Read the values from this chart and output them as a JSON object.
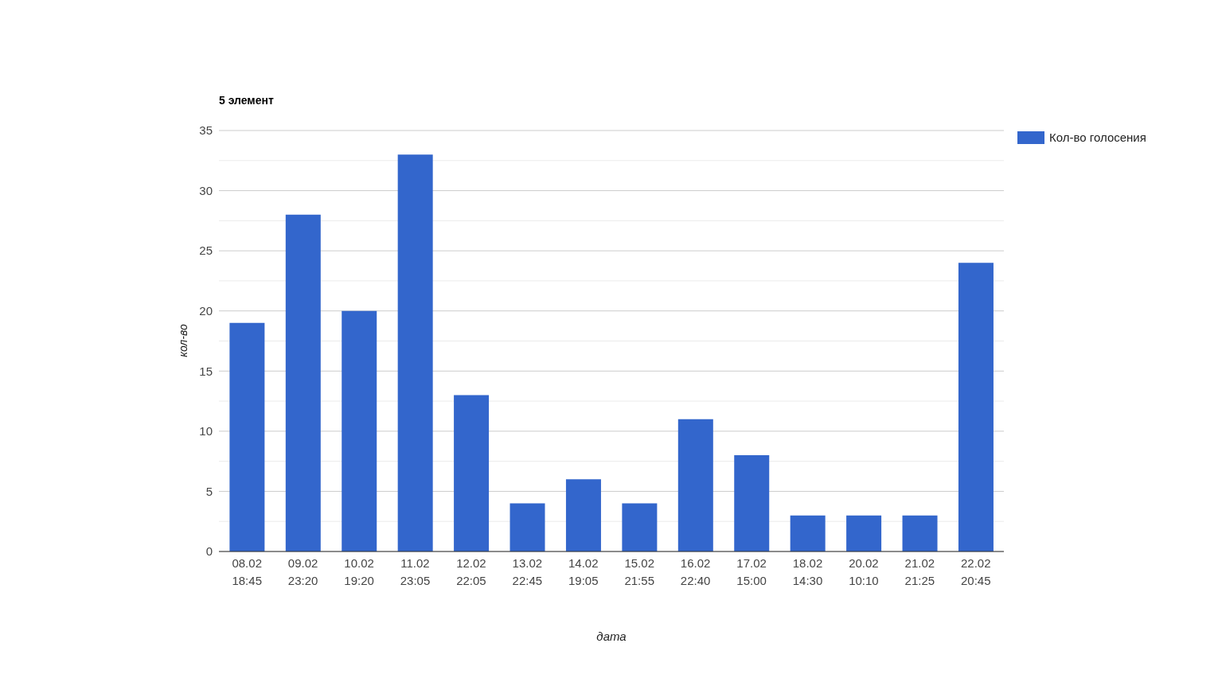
{
  "chart_data": {
    "type": "bar",
    "title": "5 элемент",
    "xlabel": "дата",
    "ylabel": "кол-во",
    "categories": [
      "08.02 18:45",
      "09.02 23:20",
      "10.02 19:20",
      "11.02 23:05",
      "12.02 22:05",
      "13.02 22:45",
      "14.02 19:05",
      "15.02 21:55",
      "16.02 22:40",
      "17.02 15:00",
      "18.02 14:30",
      "20.02 10:10",
      "21.02 21:25",
      "22.02 20:45"
    ],
    "series": [
      {
        "name": "Кол-во голосения",
        "color": "#3366cc",
        "values": [
          19,
          28,
          20,
          33,
          13,
          4,
          6,
          4,
          11,
          8,
          3,
          3,
          3,
          24
        ]
      }
    ],
    "ylim": [
      0,
      35
    ],
    "yticks": [
      0,
      {
        "value": 2.5,
        "label": null
      },
      5,
      {
        "value": 7.5,
        "label": null
      },
      10,
      {
        "value": 12.5,
        "label": null
      },
      15,
      {
        "value": 17.5,
        "label": null
      },
      20,
      {
        "value": 22.5,
        "label": null
      },
      25,
      {
        "value": 27.5,
        "label": null
      },
      30,
      {
        "value": 32.5,
        "label": null
      },
      35
    ],
    "grid": true,
    "legend": "top right"
  }
}
